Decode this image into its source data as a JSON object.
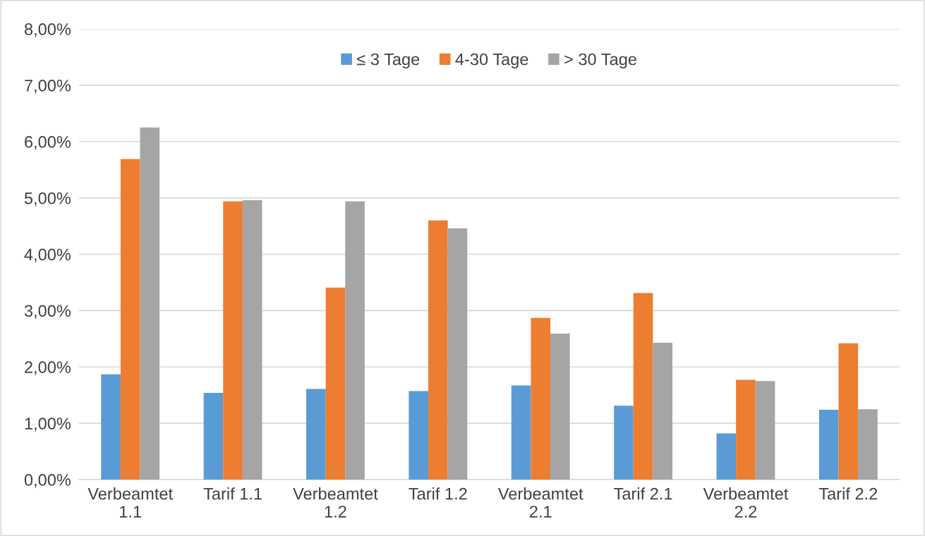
{
  "chart_data": {
    "type": "bar",
    "categories": [
      "Verbeamtet\n1.1",
      "Tarif 1.1",
      "Verbeamtet\n1.2",
      "Tarif 1.2",
      "Verbeamtet\n2.1",
      "Tarif 2.1",
      "Verbeamtet\n2.2",
      "Tarif 2.2"
    ],
    "series": [
      {
        "name": "≤ 3 Tage",
        "color": "#5b9bd5",
        "values": [
          1.87,
          1.54,
          1.61,
          1.57,
          1.67,
          1.31,
          0.82,
          1.24
        ]
      },
      {
        "name": "4-30 Tage",
        "color": "#ed7d31",
        "values": [
          5.69,
          4.94,
          3.41,
          4.6,
          2.87,
          3.31,
          1.77,
          2.42
        ]
      },
      {
        "name": "> 30 Tage",
        "color": "#a5a5a5",
        "values": [
          6.25,
          4.96,
          4.94,
          4.46,
          2.59,
          2.43,
          1.75,
          1.25
        ]
      }
    ],
    "ylim": [
      0,
      8
    ],
    "yticks": [
      {
        "value": 0,
        "label": "0,00%"
      },
      {
        "value": 1,
        "label": "1,00%"
      },
      {
        "value": 2,
        "label": "2,00%"
      },
      {
        "value": 3,
        "label": "3,00%"
      },
      {
        "value": 4,
        "label": "4,00%"
      },
      {
        "value": 5,
        "label": "5,00%"
      },
      {
        "value": 6,
        "label": "6,00%"
      },
      {
        "value": 7,
        "label": "7,00%"
      },
      {
        "value": 8,
        "label": "8,00%"
      }
    ],
    "grid": "y",
    "legend": "top"
  }
}
